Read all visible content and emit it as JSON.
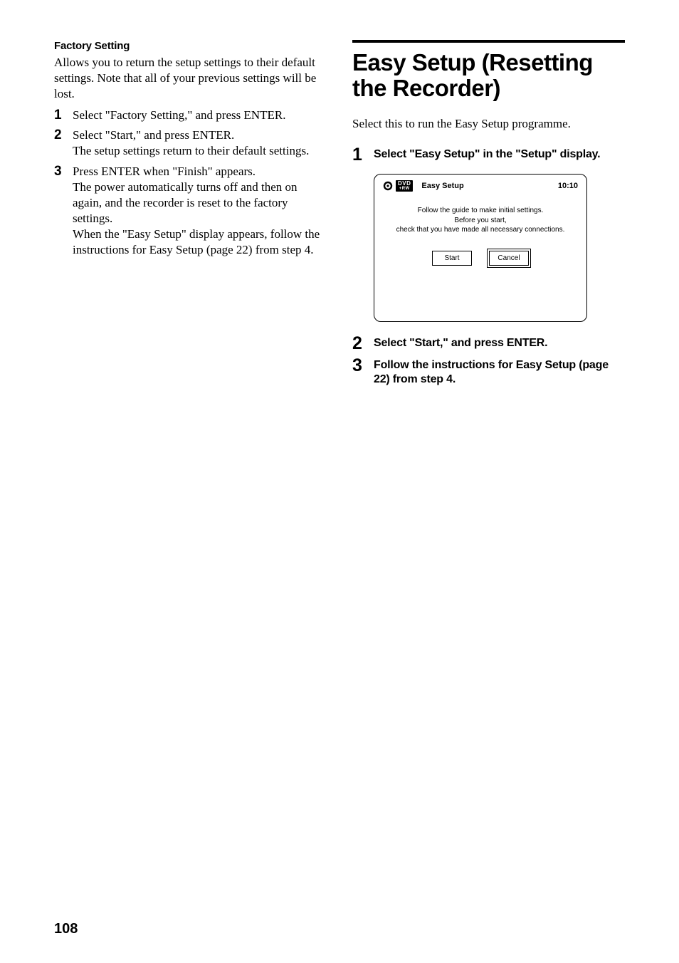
{
  "left": {
    "heading": "Factory Setting",
    "intro": "Allows you to return the setup settings to their default settings. Note that all of your previous settings will be lost.",
    "steps": [
      {
        "num": "1",
        "text": "Select \"Factory Setting,\" and press ENTER."
      },
      {
        "num": "2",
        "text": "Select \"Start,\" and press ENTER.\nThe setup settings return to their default settings."
      },
      {
        "num": "3",
        "text": "Press ENTER when \"Finish\" appears.\nThe power automatically turns off and then on again, and the recorder is reset to the factory settings.\nWhen the \"Easy Setup\" display appears, follow the instructions for Easy Setup (page 22) from step 4."
      }
    ]
  },
  "right": {
    "title": "Easy Setup (Resetting the Recorder)",
    "intro": "Select this to run the Easy Setup programme.",
    "steps": [
      {
        "num": "1",
        "text": "Select \"Easy Setup\" in the \"Setup\" display."
      },
      {
        "num": "2",
        "text": "Select \"Start,\" and press ENTER."
      },
      {
        "num": "3",
        "text": "Follow the instructions for Easy Setup (page 22) from step 4."
      }
    ]
  },
  "osd": {
    "badge_line1": "DVD",
    "badge_line2": "+RW",
    "title": "Easy Setup",
    "time": "10:10",
    "msg_line1": "Follow the guide to make initial settings.",
    "msg_line2": "Before you start,",
    "msg_line3": "check that you have made all necessary connections.",
    "start_label": "Start",
    "cancel_label": "Cancel"
  },
  "page_number": "108",
  "colors": {
    "text": "#000000",
    "background": "#ffffff"
  }
}
